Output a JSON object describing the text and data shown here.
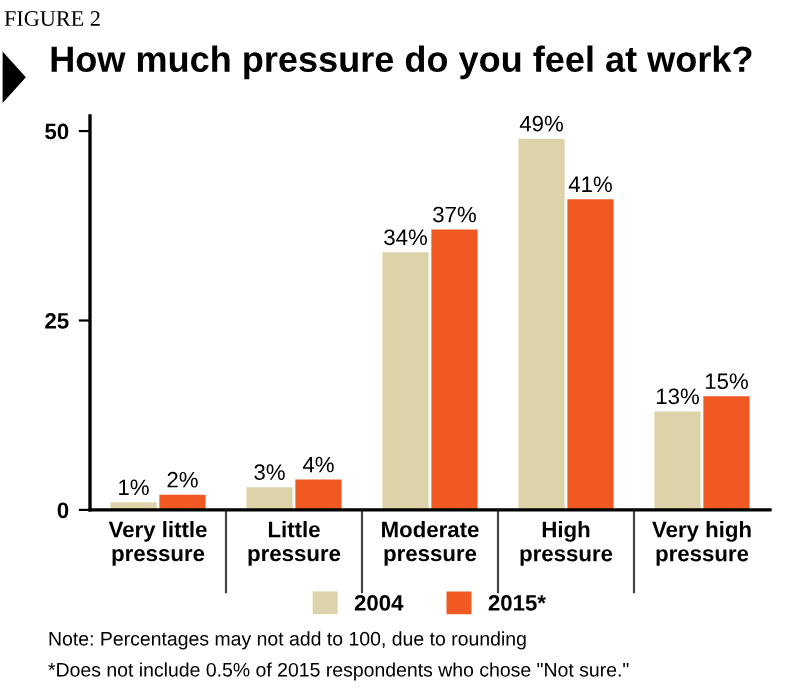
{
  "chart_data": {
    "type": "bar",
    "title": "How much pressure do you feel at work?",
    "categories": [
      "Very little\npressure",
      "Little\npressure",
      "Moderate\npressure",
      "High\npressure",
      "Very high\npressure"
    ],
    "series": [
      {
        "name": "2004",
        "color": "#ddd3aa",
        "values": [
          1,
          3,
          34,
          49,
          13
        ],
        "value_labels": [
          "1%",
          "3%",
          "34%",
          "49%",
          "13%"
        ]
      },
      {
        "name": "2015*",
        "color": "#f05a22",
        "values": [
          2,
          4,
          37,
          41,
          15
        ],
        "value_labels": [
          "2%",
          "4%",
          "37%",
          "41%",
          "15%"
        ]
      }
    ],
    "ylim": [
      0,
      52
    ],
    "yticks": [
      0,
      25,
      50
    ],
    "grid": false,
    "legend": "bottom",
    "annotations": [
      "FIGURE 2",
      "Note: Percentages may not add to 100, due to rounding",
      "*Does not include 0.5% of 2015 respondents who chose \"Not sure.\""
    ]
  }
}
